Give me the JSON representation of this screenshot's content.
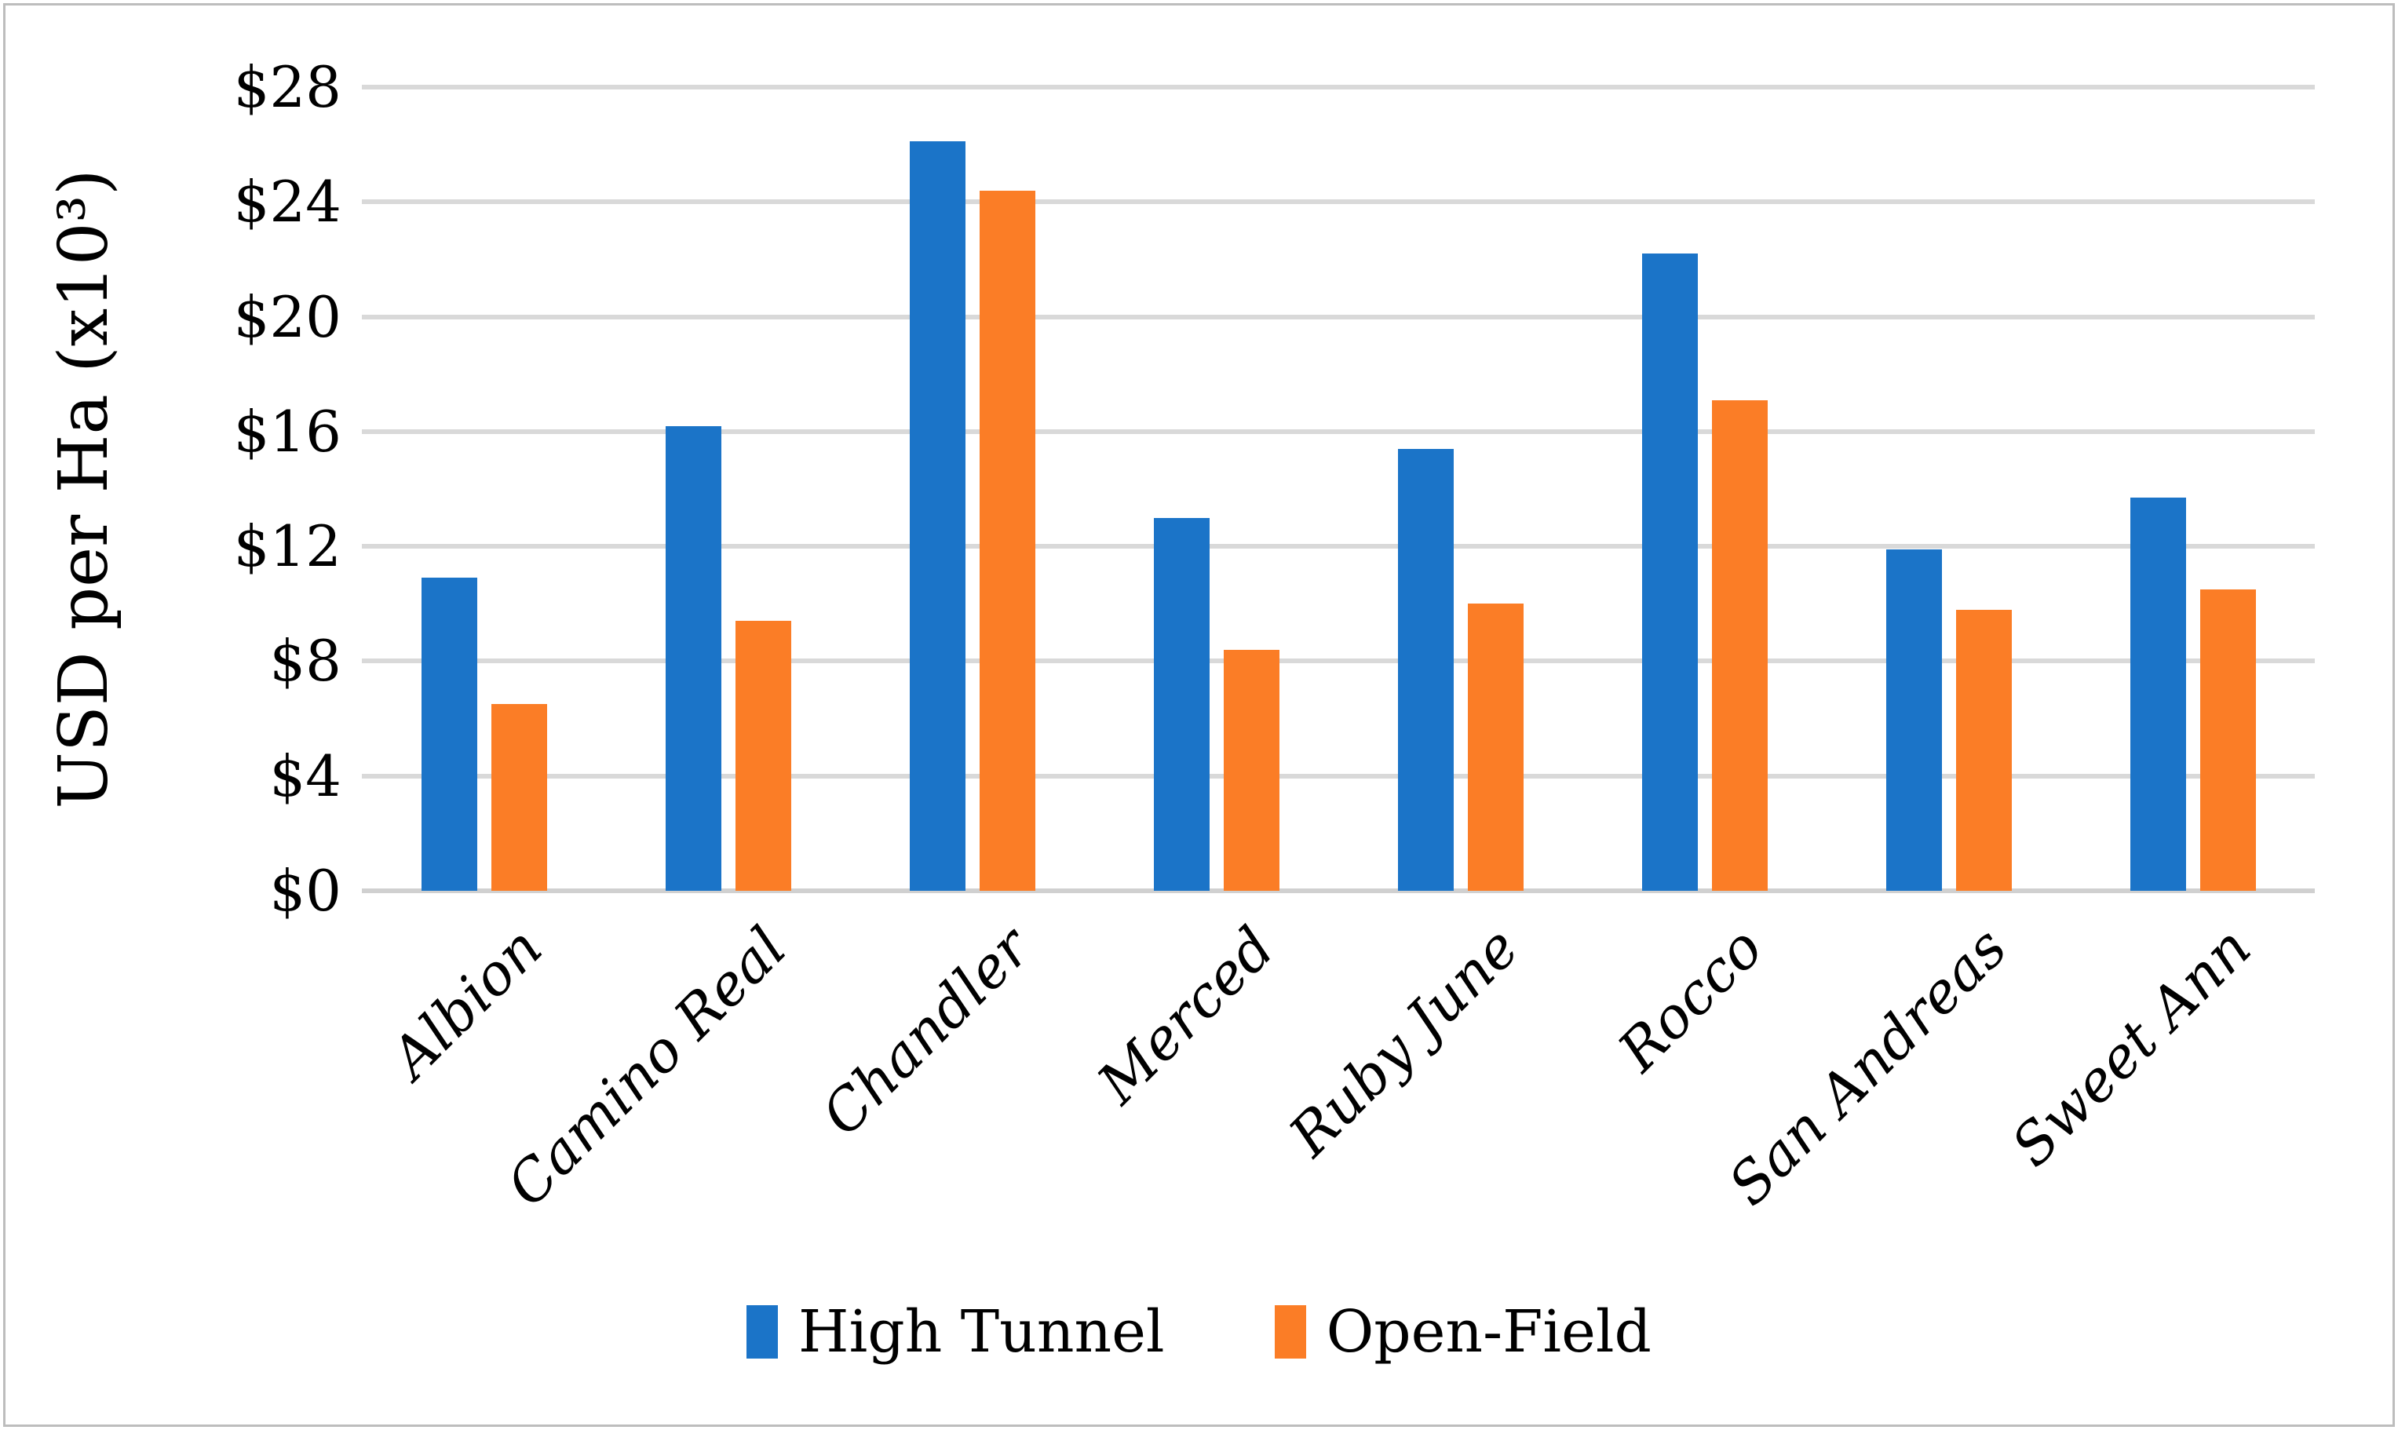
{
  "figure": {
    "background": "#FFFFFF",
    "border_color": "#BDBDBD"
  },
  "chart_data": {
    "type": "bar",
    "title": "",
    "categories": [
      "Albion",
      "Camino Real",
      "Chandler",
      "Merced",
      "Ruby June",
      "Rocco",
      "San Andreas",
      "Sweet Ann"
    ],
    "series": [
      {
        "name": "High Tunnel",
        "color": "#1B74C8",
        "values": [
          10.9,
          16.2,
          26.1,
          13.0,
          15.4,
          22.2,
          11.9,
          13.7
        ]
      },
      {
        "name": "Open-Field",
        "color": "#FB7D26",
        "values": [
          6.5,
          9.4,
          24.4,
          8.4,
          10.0,
          17.1,
          9.8,
          10.5
        ]
      }
    ],
    "xlabel": "",
    "ylabel": "USD per Ha (x10³)",
    "ylim": [
      0,
      28
    ],
    "ytick_step": 4,
    "yticks": [
      "$0",
      "$4",
      "$8",
      "$12",
      "$16",
      "$20",
      "$24",
      "$28"
    ],
    "grid": "horizontal-only",
    "gridline_color": "#D9D9D9",
    "legend_position": "bottom-center"
  }
}
